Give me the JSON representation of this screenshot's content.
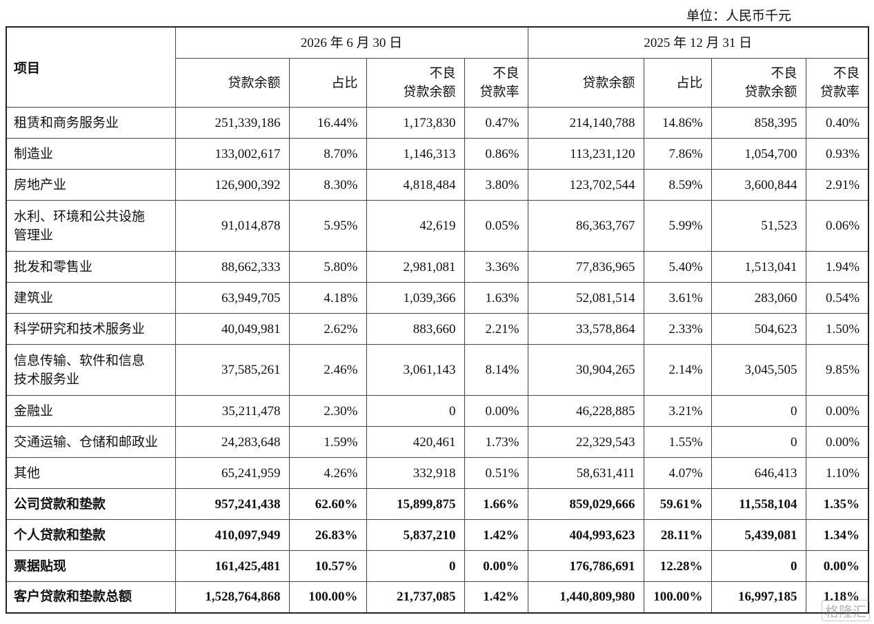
{
  "unit": "单位：人民币千元",
  "table": {
    "item_header": "项目",
    "periods": [
      "2026 年 6 月 30 日",
      "2025 年 12 月 31 日"
    ],
    "columns": [
      "贷款余额",
      "占比",
      "不良\n贷款余额",
      "不良\n贷款率",
      "贷款余额",
      "占比",
      "不良\n贷款余额",
      "不良\n贷款率"
    ],
    "rows": [
      [
        "租赁和商务服务业",
        "251,339,186",
        "16.44%",
        "1,173,830",
        "0.47%",
        "214,140,788",
        "14.86%",
        "858,395",
        "0.40%"
      ],
      [
        "制造业",
        "133,002,617",
        "8.70%",
        "1,146,313",
        "0.86%",
        "113,231,120",
        "7.86%",
        "1,054,700",
        "0.93%"
      ],
      [
        "房地产业",
        "126,900,392",
        "8.30%",
        "4,818,484",
        "3.80%",
        "123,702,544",
        "8.59%",
        "3,600,844",
        "2.91%"
      ],
      [
        "水利、环境和公共设施\n管理业",
        "91,014,878",
        "5.95%",
        "42,619",
        "0.05%",
        "86,363,767",
        "5.99%",
        "51,523",
        "0.06%"
      ],
      [
        "批发和零售业",
        "88,662,333",
        "5.80%",
        "2,981,081",
        "3.36%",
        "77,836,965",
        "5.40%",
        "1,513,041",
        "1.94%"
      ],
      [
        "建筑业",
        "63,949,705",
        "4.18%",
        "1,039,366",
        "1.63%",
        "52,081,514",
        "3.61%",
        "283,060",
        "0.54%"
      ],
      [
        "科学研究和技术服务业",
        "40,049,981",
        "2.62%",
        "883,660",
        "2.21%",
        "33,578,864",
        "2.33%",
        "504,623",
        "1.50%"
      ],
      [
        "信息传输、软件和信息\n技术服务业",
        "37,585,261",
        "2.46%",
        "3,061,143",
        "8.14%",
        "30,904,265",
        "2.14%",
        "3,045,505",
        "9.85%"
      ],
      [
        "金融业",
        "35,211,478",
        "2.30%",
        "0",
        "0.00%",
        "46,228,885",
        "3.21%",
        "0",
        "0.00%"
      ],
      [
        "交通运输、仓储和邮政业",
        "24,283,648",
        "1.59%",
        "420,461",
        "1.73%",
        "22,329,543",
        "1.55%",
        "0",
        "0.00%"
      ],
      [
        "其他",
        "65,241,959",
        "4.26%",
        "332,918",
        "0.51%",
        "58,631,411",
        "4.07%",
        "646,413",
        "1.10%"
      ],
      [
        "公司贷款和垫款",
        "957,241,438",
        "62.60%",
        "15,899,875",
        "1.66%",
        "859,029,666",
        "59.61%",
        "11,558,104",
        "1.35%"
      ],
      [
        "个人贷款和垫款",
        "410,097,949",
        "26.83%",
        "5,837,210",
        "1.42%",
        "404,993,623",
        "28.11%",
        "5,439,081",
        "1.34%"
      ],
      [
        "票据贴现",
        "161,425,481",
        "10.57%",
        "0",
        "0.00%",
        "176,786,691",
        "12.28%",
        "0",
        "0.00%"
      ],
      [
        "客户贷款和垫款总额",
        "1,528,764,868",
        "100.00%",
        "21,737,085",
        "1.42%",
        "1,440,809,980",
        "100.00%",
        "16,997,185",
        "1.18%"
      ]
    ],
    "bold_rows": [
      11,
      12,
      13,
      14
    ]
  },
  "watermark": "格隆汇"
}
